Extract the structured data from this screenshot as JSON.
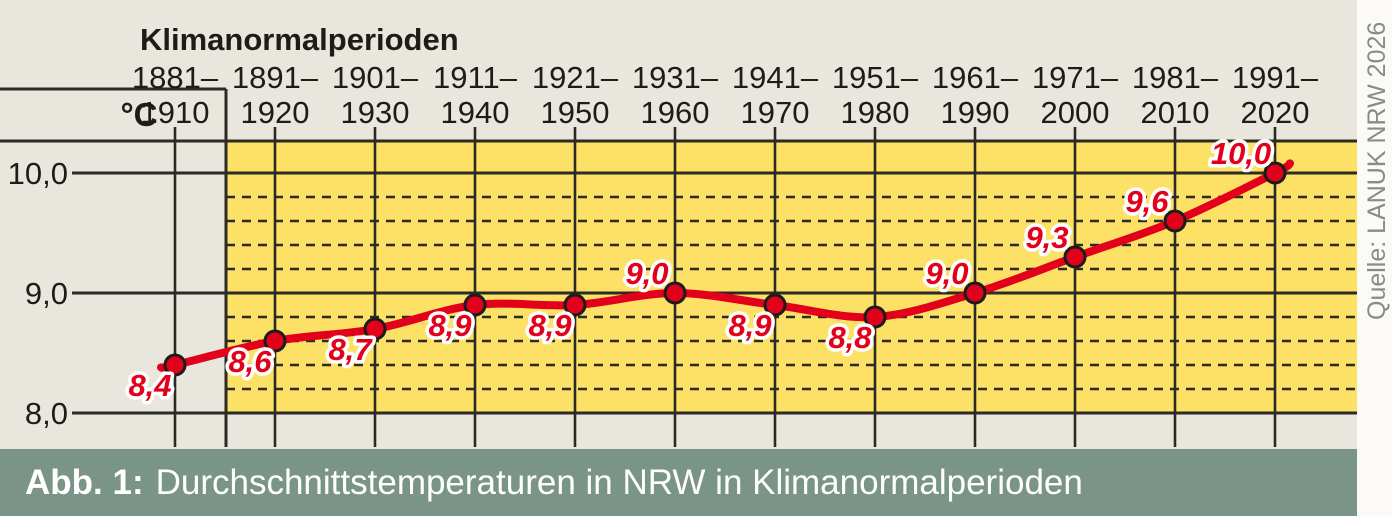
{
  "header": {
    "title": "Klimanormalperioden"
  },
  "y_axis": {
    "unit_label": "°C"
  },
  "source_credit": "Quelle: LANUK NRW 2026",
  "caption": {
    "label": "Abb. 1:",
    "text": "Durchschnittstemperaturen in NRW in Klimanormalperioden"
  },
  "chart_data": {
    "type": "line",
    "title": "Klimanormalperioden",
    "xlabel": "",
    "ylabel": "°C",
    "categories": [
      "1881–1910",
      "1891–1920",
      "1901–1930",
      "1911–1940",
      "1921–1950",
      "1931–1960",
      "1941–1970",
      "1951–1980",
      "1961–1990",
      "1971–2000",
      "1981–2010",
      "1991–2020"
    ],
    "values": [
      8.4,
      8.6,
      8.7,
      8.9,
      8.9,
      9.0,
      8.9,
      8.8,
      9.0,
      9.3,
      9.6,
      10.0
    ],
    "value_labels": [
      "8,4",
      "8,6",
      "8,7",
      "8,9",
      "8,9",
      "9,0",
      "8,9",
      "8,8",
      "9,0",
      "9,3",
      "9,6",
      "10,0"
    ],
    "label_placement": [
      "below",
      "below",
      "below",
      "below",
      "below",
      "above",
      "below",
      "below",
      "above",
      "above",
      "above",
      "above"
    ],
    "ylim": [
      8.0,
      10.27
    ],
    "y_ticks": [
      {
        "value": 8.0,
        "label": "8,0"
      },
      {
        "value": 9.0,
        "label": "9,0"
      },
      {
        "value": 10.0,
        "label": "10,0"
      }
    ],
    "y_minor_step": 0.2,
    "grid": {
      "major": "solid",
      "minor": "dashed",
      "vertical": "solid"
    },
    "legend": "none",
    "colors": {
      "page_background": "#e9e7dd",
      "plot_background": "#fce166",
      "grid": "#2b2a24",
      "line": "#e2001a",
      "point_fill": "#e2001a",
      "point_stroke": "#1d1c1a",
      "value_label": "#e2001a",
      "value_label_outline": "#ffffff",
      "axis_text": "#1d1c1a",
      "caption_bar": "#7b9488",
      "caption_text": "#ffffff",
      "source_text": "#8a8a86"
    }
  }
}
